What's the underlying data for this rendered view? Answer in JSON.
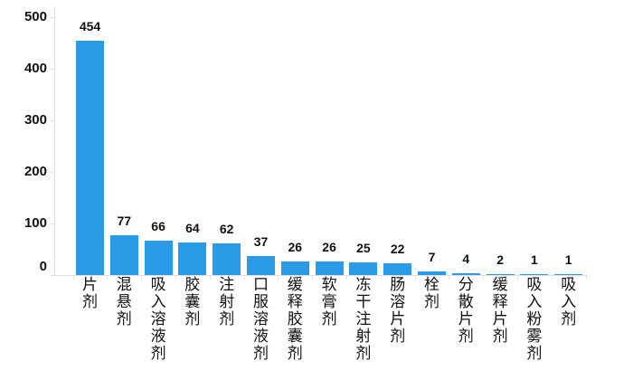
{
  "chart_data": {
    "type": "bar",
    "title": "",
    "xlabel": "",
    "ylabel": "",
    "ylim": [
      0,
      500
    ],
    "yticks": [
      0,
      100,
      200,
      300,
      400,
      500
    ],
    "grid": false,
    "legend": null,
    "bar_color": "#2b9be8",
    "categories": [
      "片剂",
      "混悬剂",
      "吸入溶液剂",
      "胶囊剂",
      "注射剂",
      "口服溶液剂",
      "缓释胶囊剂",
      "软膏剂",
      "冻干注射剂",
      "肠溶片剂",
      "栓剂",
      "分散片剂",
      "缓释片剂",
      "吸入粉雾剂",
      "吸入剂"
    ],
    "values": [
      454,
      77,
      66,
      64,
      62,
      37,
      26,
      26,
      25,
      22,
      7,
      4,
      2,
      1,
      1
    ]
  }
}
